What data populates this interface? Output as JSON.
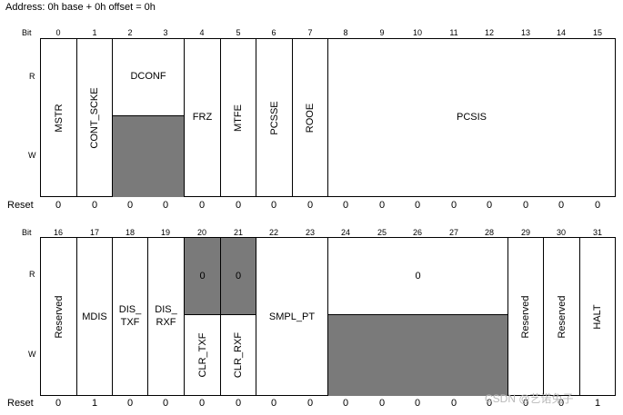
{
  "address": "Address: 0h base + 0h offset = 0h",
  "labels": {
    "bit": "Bit",
    "r": "R",
    "w": "W",
    "reset": "Reset"
  },
  "row1": {
    "bits": [
      "0",
      "1",
      "2",
      "3",
      "4",
      "5",
      "6",
      "7",
      "8",
      "9",
      "10",
      "11",
      "12",
      "13",
      "14",
      "15"
    ],
    "fields": {
      "mstr": "MSTR",
      "cont_scke": "CONT_SCKE",
      "dconf": "DCONF",
      "frz": "FRZ",
      "mtfe": "MTFE",
      "pcsse": "PCSSE",
      "rooe": "ROOE",
      "pcsis": "PCSIS"
    },
    "reset": [
      "0",
      "0",
      "0",
      "0",
      "0",
      "0",
      "0",
      "0",
      "0",
      "0",
      "0",
      "0",
      "0",
      "0",
      "0",
      "0"
    ]
  },
  "row2": {
    "bits": [
      "16",
      "17",
      "18",
      "19",
      "20",
      "21",
      "22",
      "23",
      "24",
      "25",
      "26",
      "27",
      "28",
      "29",
      "30",
      "31"
    ],
    "fields": {
      "reserved16": "Reserved",
      "mdis": "MDIS",
      "dis_txf_1": "DIS_",
      "dis_txf_2": "TXF",
      "dis_rxf_1": "DIS_",
      "dis_rxf_2": "RXF",
      "r20": "0",
      "r21": "0",
      "clr_txf": "CLR_TXF",
      "clr_rxf": "CLR_RXF",
      "smpl_pt": "SMPL_PT",
      "r24_28": "0",
      "reserved29": "Reserved",
      "reserved30": "Reserved",
      "halt": "HALT"
    },
    "reset": [
      "0",
      "1",
      "0",
      "0",
      "0",
      "0",
      "0",
      "0",
      "0",
      "0",
      "0",
      "0",
      "0",
      "0",
      "0",
      "1"
    ]
  },
  "watermark": "CSDN @艺诺兔子"
}
